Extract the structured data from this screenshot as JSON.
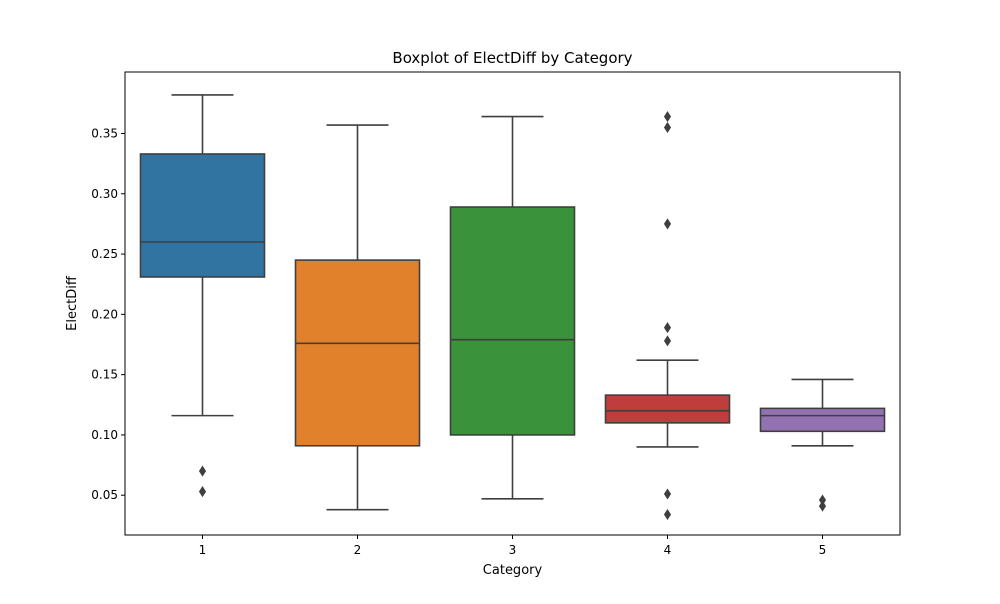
{
  "chart_data": {
    "type": "box",
    "title": "Boxplot of ElectDiff by Category",
    "xlabel": "Category",
    "ylabel": "ElectDiff",
    "categories": [
      "1",
      "2",
      "3",
      "4",
      "5"
    ],
    "ylim": [
      0.017,
      0.401
    ],
    "yticks": [
      0.05,
      0.1,
      0.15,
      0.2,
      0.25,
      0.3,
      0.35
    ],
    "ytick_labels": [
      "0.05",
      "0.10",
      "0.15",
      "0.20",
      "0.25",
      "0.30",
      "0.35"
    ],
    "grid": false,
    "edge_color": "#3f3f3f",
    "boxes": [
      {
        "category": "1",
        "color": "#3274a1",
        "whisker_low": 0.116,
        "q1": 0.231,
        "median": 0.26,
        "q3": 0.333,
        "whisker_high": 0.382,
        "outliers": [
          0.07,
          0.053
        ]
      },
      {
        "category": "2",
        "color": "#e1812c",
        "whisker_low": 0.038,
        "q1": 0.091,
        "median": 0.176,
        "q3": 0.245,
        "whisker_high": 0.357,
        "outliers": []
      },
      {
        "category": "3",
        "color": "#3a923a",
        "whisker_low": 0.047,
        "q1": 0.1,
        "median": 0.179,
        "q3": 0.289,
        "whisker_high": 0.364,
        "outliers": []
      },
      {
        "category": "4",
        "color": "#c03d3e",
        "whisker_low": 0.09,
        "q1": 0.11,
        "median": 0.12,
        "q3": 0.133,
        "whisker_high": 0.162,
        "outliers": [
          0.364,
          0.355,
          0.275,
          0.189,
          0.178,
          0.051,
          0.034
        ]
      },
      {
        "category": "5",
        "color": "#9372b2",
        "whisker_low": 0.091,
        "q1": 0.103,
        "median": 0.116,
        "q3": 0.122,
        "whisker_high": 0.146,
        "outliers": [
          0.046,
          0.041
        ]
      }
    ]
  }
}
